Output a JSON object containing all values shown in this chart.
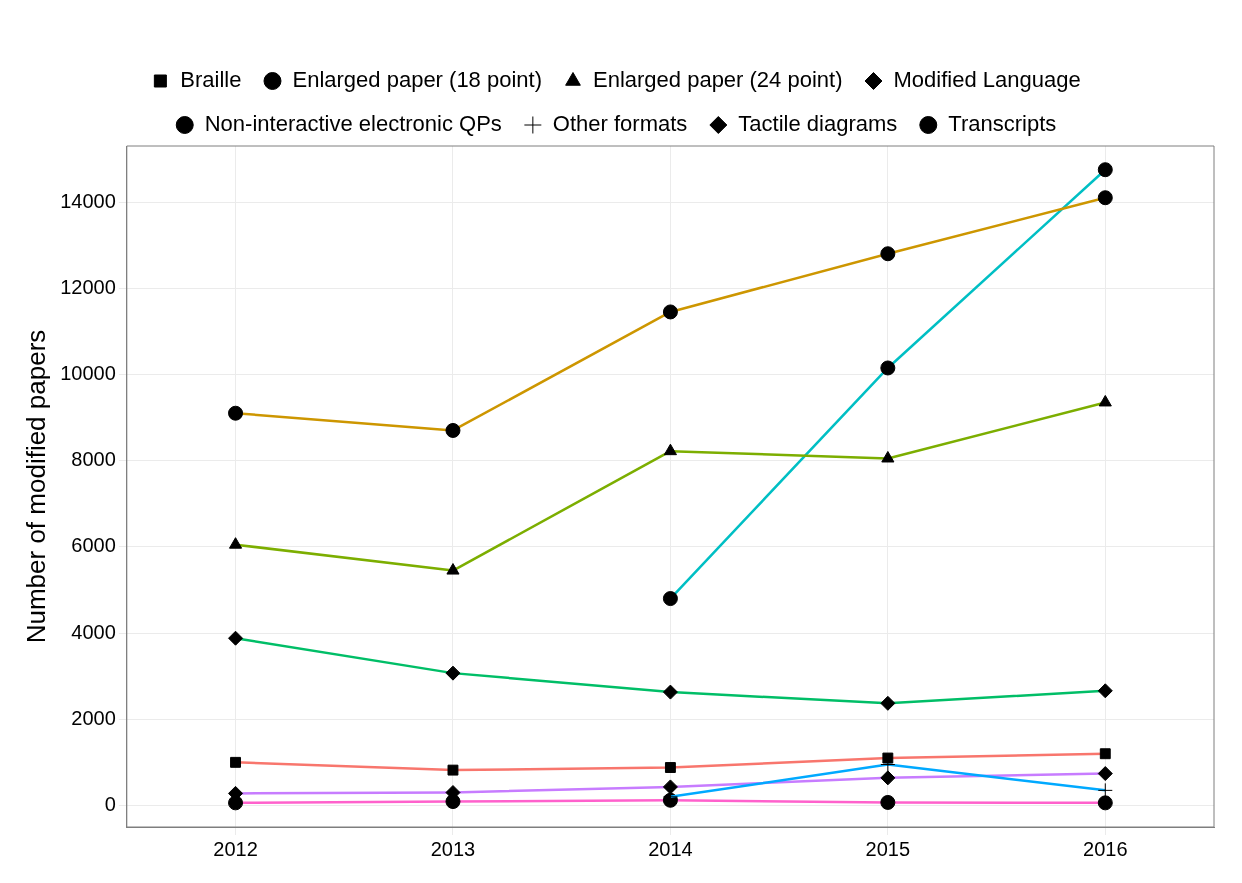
{
  "chart_data": {
    "type": "line",
    "ylabel": "Number of modified papers",
    "categories": [
      "2012",
      "2013",
      "2014",
      "2015",
      "2016"
    ],
    "ylim": [
      -500,
      15300
    ],
    "yticks": [
      0,
      2000,
      4000,
      6000,
      8000,
      10000,
      12000,
      14000
    ],
    "grid": true,
    "legend": "top",
    "series": [
      {
        "name": "Braille",
        "color": "#f8766d",
        "marker": "square",
        "values": [
          1000,
          820,
          880,
          1100,
          1200
        ]
      },
      {
        "name": "Enlarged paper (18 point)",
        "color": "#cd9600",
        "marker": "circle",
        "values": [
          9100,
          8700,
          11450,
          12800,
          14100
        ]
      },
      {
        "name": "Enlarged paper (24 point)",
        "color": "#7cae00",
        "marker": "triangle",
        "values": [
          6050,
          5450,
          8220,
          8050,
          9350
        ]
      },
      {
        "name": "Modified Language",
        "color": "#00be67",
        "marker": "diamond",
        "values": [
          3880,
          3070,
          2630,
          2370,
          2660
        ]
      },
      {
        "name": "Non-interactive electronic QPs",
        "color": "#00bfc4",
        "marker": "circle",
        "values": [
          null,
          null,
          4800,
          10150,
          14750
        ]
      },
      {
        "name": "Other formats",
        "color": "#00a9ff",
        "marker": "cross",
        "values": [
          null,
          null,
          200,
          950,
          350
        ]
      },
      {
        "name": "Tactile diagrams",
        "color": "#c77cff",
        "marker": "diamond",
        "values": [
          280,
          300,
          430,
          640,
          740
        ]
      },
      {
        "name": "Transcripts",
        "color": "#ff61cc",
        "marker": "circle",
        "values": [
          60,
          90,
          120,
          70,
          60
        ]
      }
    ]
  }
}
